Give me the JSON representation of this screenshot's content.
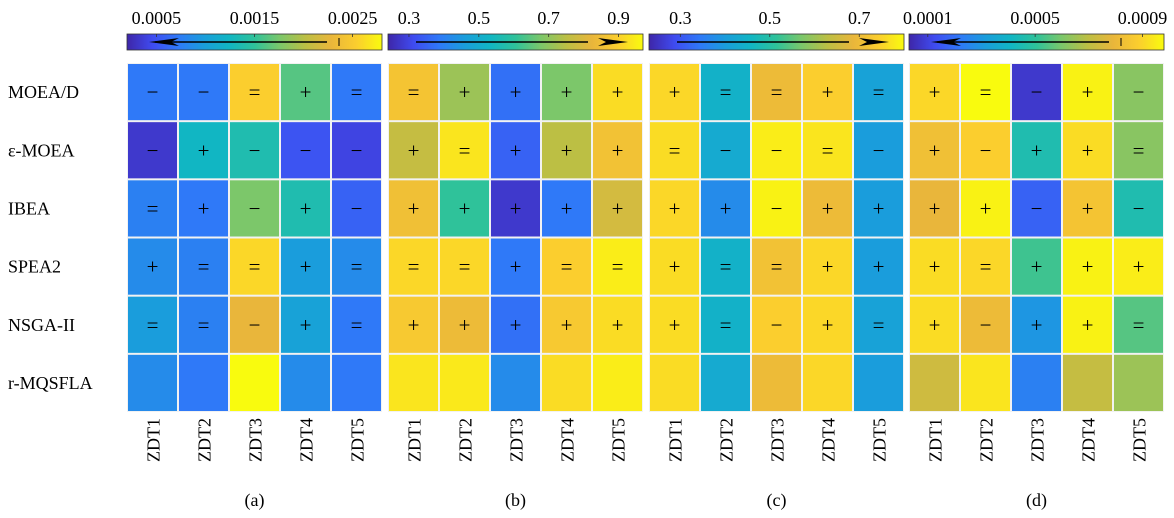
{
  "figure": {
    "row_labels": [
      "MOEA/D",
      "ε-MOEA",
      "IBEA",
      "SPEA2",
      "NSGA-II",
      "r-MQSFLA"
    ],
    "colormap": [
      "#3e26a8",
      "#3f4bf0",
      "#2f79f8",
      "#1a9ddc",
      "#11b6c3",
      "#2fc29a",
      "#7cc76a",
      "#bcbf44",
      "#e9b63b",
      "#fbce2e",
      "#f9fb0e"
    ],
    "panel_background": "#f2f2f2"
  },
  "chart_data": [
    {
      "type": "heatmap",
      "caption": "(a)",
      "columns": [
        "ZDT1",
        "ZDT2",
        "ZDT3",
        "ZDT4",
        "ZDT5"
      ],
      "rows": [
        "MOEA/D",
        "ε-MOEA",
        "IBEA",
        "SPEA2",
        "NSGA-II",
        "r-MQSFLA"
      ],
      "colorbar": {
        "ticks": [
          "0.0005",
          "0.0015",
          "0.0025"
        ],
        "tick_values": [
          0.0005,
          0.0015,
          0.0025
        ],
        "range": [
          0.0002,
          0.0028
        ],
        "arrow": "left"
      },
      "values": [
        [
          0.2,
          0.2,
          0.9,
          0.55,
          0.2
        ],
        [
          0.05,
          0.4,
          0.45,
          0.12,
          0.08
        ],
        [
          0.22,
          0.2,
          0.6,
          0.45,
          0.15
        ],
        [
          0.25,
          0.22,
          0.92,
          0.3,
          0.25
        ],
        [
          0.3,
          0.22,
          0.8,
          0.32,
          0.2
        ],
        [
          0.25,
          0.2,
          1.0,
          0.25,
          0.2
        ]
      ],
      "signs": [
        [
          "−",
          "−",
          "=",
          "+",
          "="
        ],
        [
          "−",
          "+",
          "−",
          "−",
          "−"
        ],
        [
          "=",
          "+",
          "−",
          "+",
          "−"
        ],
        [
          "+",
          "=",
          "=",
          "+",
          "="
        ],
        [
          "=",
          "=",
          "−",
          "+",
          "="
        ],
        [
          "",
          "",
          "",
          "",
          ""
        ]
      ]
    },
    {
      "type": "heatmap",
      "caption": "(b)",
      "columns": [
        "ZDT1",
        "ZDT2",
        "ZDT3",
        "ZDT4",
        "ZDT5"
      ],
      "rows": [
        "MOEA/D",
        "ε-MOEA",
        "IBEA",
        "SPEA2",
        "NSGA-II",
        "r-MQSFLA"
      ],
      "colorbar": {
        "ticks": [
          "0.3",
          "0.5",
          "0.7",
          "0.9"
        ],
        "tick_values": [
          0.3,
          0.5,
          0.7,
          0.9
        ],
        "range": [
          0.24,
          0.97
        ],
        "arrow": "right"
      },
      "values": [
        [
          0.86,
          0.65,
          0.18,
          0.6,
          0.93
        ],
        [
          0.72,
          0.95,
          0.15,
          0.7,
          0.85
        ],
        [
          0.84,
          0.5,
          0.05,
          0.2,
          0.75
        ],
        [
          0.92,
          0.92,
          0.2,
          0.9,
          0.97
        ],
        [
          0.88,
          0.82,
          0.18,
          0.88,
          0.93
        ],
        [
          0.95,
          0.96,
          0.25,
          0.93,
          0.97
        ]
      ],
      "signs": [
        [
          "=",
          "+",
          "+",
          "+",
          "+"
        ],
        [
          "+",
          "=",
          "+",
          "+",
          "+"
        ],
        [
          "+",
          "+",
          "+",
          "+",
          "+"
        ],
        [
          "=",
          "=",
          "+",
          "=",
          "="
        ],
        [
          "+",
          "+",
          "+",
          "+",
          "+"
        ],
        [
          "",
          "",
          "",
          "",
          ""
        ]
      ]
    },
    {
      "type": "heatmap",
      "caption": "(c)",
      "columns": [
        "ZDT1",
        "ZDT2",
        "ZDT3",
        "ZDT4",
        "ZDT5"
      ],
      "rows": [
        "MOEA/D",
        "ε-MOEA",
        "IBEA",
        "SPEA2",
        "NSGA-II",
        "r-MQSFLA"
      ],
      "colorbar": {
        "ticks": [
          "0.3",
          "0.5",
          "0.7"
        ],
        "tick_values": [
          0.3,
          0.5,
          0.7
        ],
        "range": [
          0.23,
          0.8
        ],
        "arrow": "right"
      },
      "values": [
        [
          0.92,
          0.38,
          0.82,
          0.9,
          0.32
        ],
        [
          0.93,
          0.35,
          0.97,
          0.95,
          0.3
        ],
        [
          0.92,
          0.25,
          0.98,
          0.82,
          0.3
        ],
        [
          0.93,
          0.38,
          0.85,
          0.92,
          0.3
        ],
        [
          0.93,
          0.38,
          0.9,
          0.92,
          0.32
        ],
        [
          0.93,
          0.35,
          0.82,
          0.92,
          0.3
        ]
      ],
      "signs": [
        [
          "+",
          "=",
          "=",
          "+",
          "="
        ],
        [
          "=",
          "−",
          "−",
          "=",
          "−"
        ],
        [
          "+",
          "+",
          "−",
          "+",
          "+"
        ],
        [
          "+",
          "=",
          "=",
          "+",
          "+"
        ],
        [
          "+",
          "=",
          "−",
          "+",
          "="
        ],
        [
          "",
          "",
          "",
          "",
          ""
        ]
      ]
    },
    {
      "type": "heatmap",
      "caption": "(d)",
      "columns": [
        "ZDT1",
        "ZDT2",
        "ZDT3",
        "ZDT4",
        "ZDT5"
      ],
      "rows": [
        "MOEA/D",
        "ε-MOEA",
        "IBEA",
        "SPEA2",
        "NSGA-II",
        "r-MQSFLA"
      ],
      "colorbar": {
        "ticks": [
          "0.0001",
          "0.0005",
          "0.0009"
        ],
        "tick_values": [
          0.0001,
          0.0005,
          0.0009
        ],
        "range": [
          3e-05,
          0.00098
        ],
        "arrow": "left"
      },
      "values": [
        [
          0.92,
          1.0,
          0.05,
          0.98,
          0.62
        ],
        [
          0.84,
          0.9,
          0.45,
          0.93,
          0.62
        ],
        [
          0.8,
          0.98,
          0.15,
          0.86,
          0.45
        ],
        [
          0.93,
          0.92,
          0.52,
          0.98,
          0.97
        ],
        [
          0.93,
          0.82,
          0.28,
          0.98,
          0.55
        ],
        [
          0.74,
          0.95,
          0.22,
          0.72,
          0.65
        ]
      ],
      "signs": [
        [
          "+",
          "=",
          "−",
          "+",
          "−"
        ],
        [
          "+",
          "−",
          "+",
          "+",
          "="
        ],
        [
          "+",
          "+",
          "−",
          "+",
          "−"
        ],
        [
          "+",
          "=",
          "+",
          "+",
          "+"
        ],
        [
          "+",
          "−",
          "+",
          "+",
          "="
        ],
        [
          "",
          "",
          "",
          "",
          ""
        ]
      ]
    }
  ]
}
